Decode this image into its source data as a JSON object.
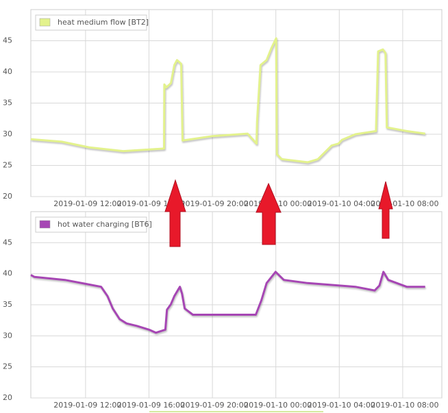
{
  "chart_data": [
    {
      "type": "line",
      "x": [
        "2019-01-09 08:33",
        "2019-01-09 10:30",
        "2019-01-09 12:13",
        "2019-01-09 14:22",
        "2019-01-09 16:57",
        "2019-01-09 16:58",
        "2019-01-09 17:05",
        "2019-01-09 17:23",
        "2019-01-09 17:36",
        "2019-01-09 17:46",
        "2019-01-09 18:02",
        "2019-01-09 18:07",
        "2019-01-09 20:00",
        "2019-01-09 22:13",
        "2019-01-09 22:47",
        "2019-01-09 22:49",
        "2019-01-09 23:02",
        "2019-01-09 23:25",
        "2019-01-09 23:43",
        "2019-01-10 00:01",
        "2019-01-10 00:04",
        "2019-01-10 00:22",
        "2019-01-10 02:00",
        "2019-01-10 02:39",
        "2019-01-10 03:31",
        "2019-01-10 03:57",
        "2019-01-10 04:10",
        "2019-01-10 05:01",
        "2019-01-10 06:19",
        "2019-01-10 06:27",
        "2019-01-10 06:45",
        "2019-01-10 06:55",
        "2019-01-10 07:00",
        "2019-01-10 08:15",
        "2019-01-10 09:25"
      ],
      "series": [
        {
          "name": "heat medium flow [BT2]",
          "color": "#e3f28c",
          "values": [
            29.2,
            28.8,
            27.9,
            27.3,
            27.7,
            38.0,
            37.5,
            38.2,
            41.1,
            41.9,
            41.3,
            29.0,
            29.7,
            30.1,
            28.5,
            32.0,
            41.1,
            41.9,
            43.8,
            45.4,
            26.8,
            26.0,
            25.5,
            26.0,
            28.2,
            28.5,
            29.1,
            30.0,
            30.5,
            43.3,
            43.6,
            43.0,
            31.1,
            30.5,
            30.1
          ]
        }
      ],
      "xlim": [
        "2019-01-09 08:33",
        "2019-01-10 10:28"
      ],
      "xticks": [
        "2019-01-09 12:00",
        "2019-01-09 16:00",
        "2019-01-09 20:00",
        "2019-01-10 00:00",
        "2019-01-10 04:00",
        "2019-01-10 08:00"
      ],
      "ylim": [
        20,
        50
      ],
      "yticks": [
        20,
        25,
        30,
        35,
        40,
        45
      ],
      "grid": true
    },
    {
      "type": "line",
      "x": [
        "2019-01-09 08:33",
        "2019-01-09 08:46",
        "2019-01-09 10:42",
        "2019-01-09 12:59",
        "2019-01-09 13:23",
        "2019-01-09 13:43",
        "2019-01-09 14:09",
        "2019-01-09 14:35",
        "2019-01-09 15:14",
        "2019-01-09 16:00",
        "2019-01-09 16:26",
        "2019-01-09 17:02",
        "2019-01-09 17:08",
        "2019-01-09 17:23",
        "2019-01-09 17:36",
        "2019-01-09 17:57",
        "2019-01-09 18:05",
        "2019-01-09 18:15",
        "2019-01-09 18:46",
        "2019-01-09 19:33",
        "2019-01-09 22:44",
        "2019-01-09 23:05",
        "2019-01-09 23:25",
        "2019-01-09 23:59",
        "2019-01-10 00:30",
        "2019-01-10 02:00",
        "2019-01-10 05:01",
        "2019-01-10 06:14",
        "2019-01-10 06:32",
        "2019-01-10 06:47",
        "2019-01-10 07:05",
        "2019-01-10 08:15",
        "2019-01-10 09:25"
      ],
      "series": [
        {
          "name": "hot water charging [BT6]",
          "color": "#a646b4",
          "values": [
            39.8,
            39.5,
            39.0,
            37.9,
            36.4,
            34.4,
            32.7,
            32.0,
            31.6,
            31.0,
            30.5,
            31.0,
            34.2,
            35.1,
            36.4,
            37.9,
            36.8,
            34.4,
            33.4,
            33.4,
            33.4,
            35.7,
            38.5,
            40.3,
            39.0,
            38.5,
            37.9,
            37.3,
            38.1,
            40.3,
            39.0,
            37.9,
            37.9
          ]
        }
      ],
      "xlim": [
        "2019-01-09 08:33",
        "2019-01-10 10:28"
      ],
      "xticks": [
        "2019-01-09 12:00",
        "2019-01-09 16:00",
        "2019-01-09 20:00",
        "2019-01-10 00:00",
        "2019-01-10 04:00",
        "2019-01-10 08:00"
      ],
      "ylim": [
        20,
        50
      ],
      "yticks": [
        20,
        25,
        30,
        35,
        40,
        45
      ],
      "grid": true
    }
  ]
}
